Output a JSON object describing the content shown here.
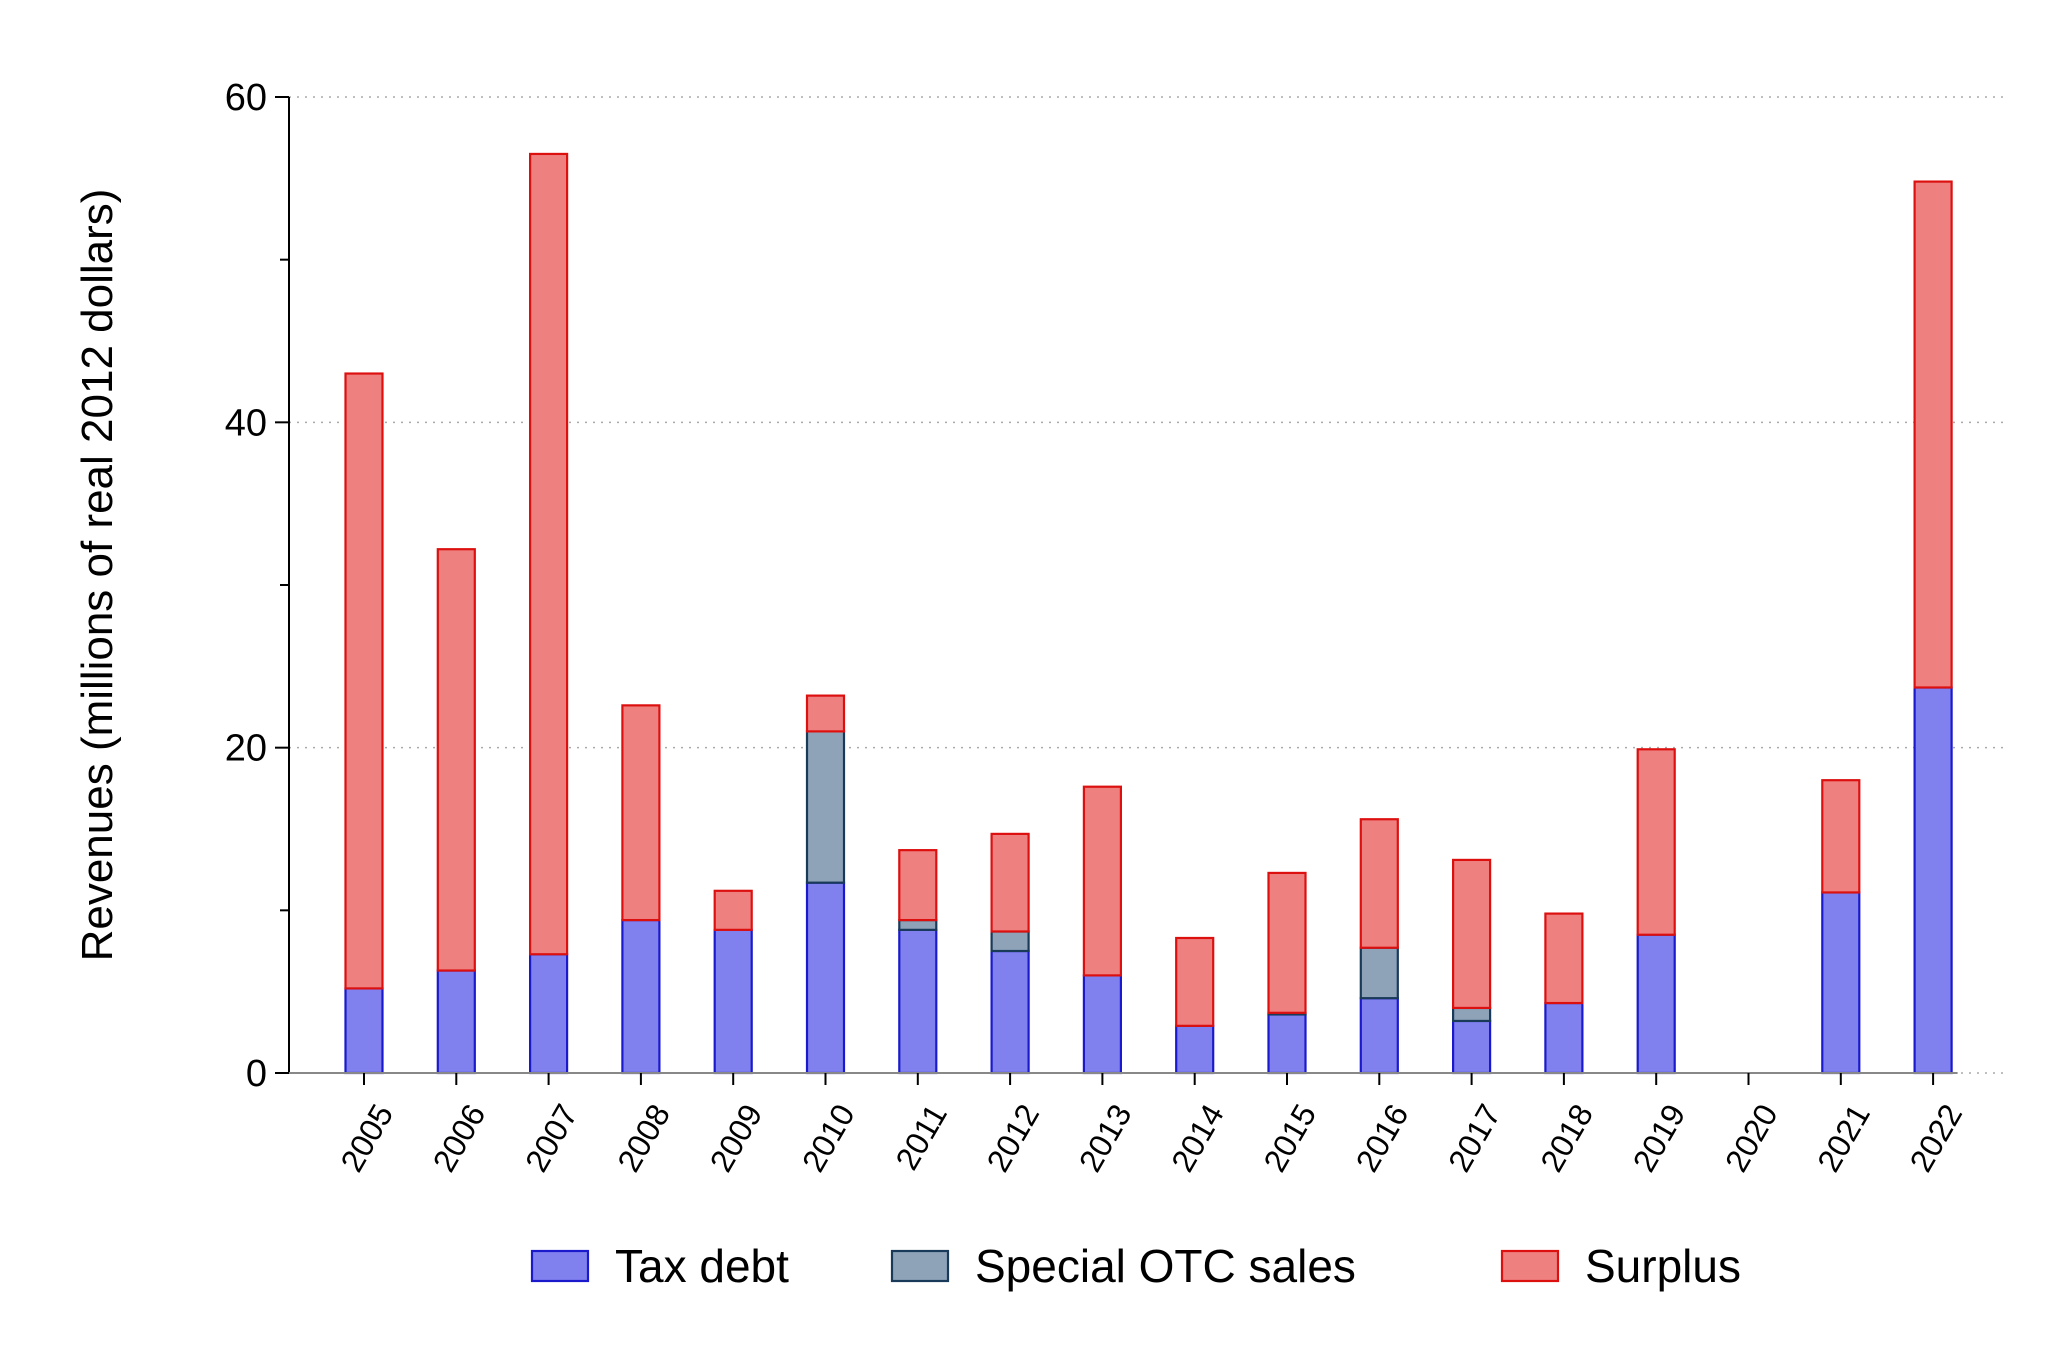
{
  "chart_data": {
    "type": "bar",
    "stacked": true,
    "ylabel": "Revenues (millions of real 2012 dollars)",
    "xlabel": "",
    "ylim": [
      0,
      60
    ],
    "yticks": [
      0,
      20,
      40,
      60
    ],
    "grid": true,
    "legend_position": "bottom",
    "categories": [
      "2005",
      "2006",
      "2007",
      "2008",
      "2009",
      "2010",
      "2011",
      "2012",
      "2013",
      "2014",
      "2015",
      "2016",
      "2017",
      "2018",
      "2019",
      "2020",
      "2021",
      "2022"
    ],
    "series": [
      {
        "name": "Tax debt",
        "fill": "#8080ee",
        "stroke": "#1a1acc",
        "values": [
          5.2,
          6.3,
          7.3,
          9.4,
          8.8,
          11.7,
          8.8,
          7.5,
          6.0,
          2.9,
          3.6,
          4.6,
          3.2,
          4.3,
          8.5,
          0,
          11.1,
          23.7
        ]
      },
      {
        "name": "Special OTC sales",
        "fill": "#8ea3b8",
        "stroke": "#1a3a5a",
        "values": [
          0,
          0,
          0,
          0,
          0,
          9.3,
          0.6,
          1.2,
          0,
          0,
          0.1,
          3.1,
          0.8,
          0,
          0,
          0,
          0,
          0
        ]
      },
      {
        "name": "Surplus",
        "fill": "#ef8080",
        "stroke": "#dd1010",
        "values": [
          37.8,
          25.9,
          49.2,
          13.2,
          2.4,
          2.2,
          4.3,
          6.0,
          11.6,
          5.4,
          8.6,
          7.9,
          9.1,
          5.5,
          11.4,
          0,
          6.9,
          31.1
        ]
      }
    ]
  }
}
